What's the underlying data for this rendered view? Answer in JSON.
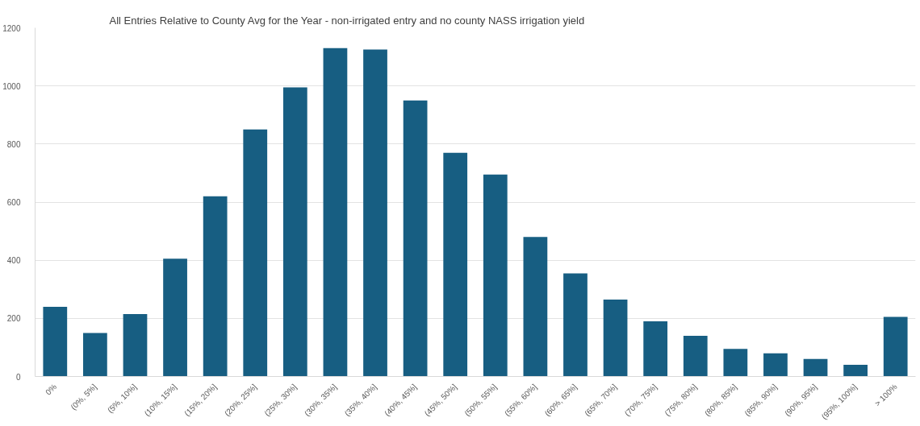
{
  "chart_data": {
    "type": "bar",
    "title": "All Entries Relative to County Avg for the Year - non-irrigated entry and no county NASS irrigation yield",
    "categories": [
      "0%",
      "(0%, 5%]",
      "(5%, 10%]",
      "(10%, 15%]",
      "(15%, 20%]",
      "(20%, 25%]",
      "(25%, 30%]",
      "(30%, 35%]",
      "(35%, 40%]",
      "(40%, 45%]",
      "(45%, 50%]",
      "(50%, 55%]",
      "(55%, 60%]",
      "(60%, 65%]",
      "(65%, 70%]",
      "(70%, 75%]",
      "(75%, 80%]",
      "(80%, 85%]",
      "(85%, 90%]",
      "(90%, 95%]",
      "(95%, 100%]",
      "> 100%"
    ],
    "values": [
      240,
      150,
      215,
      405,
      620,
      850,
      995,
      1130,
      1125,
      950,
      770,
      695,
      480,
      355,
      265,
      190,
      140,
      95,
      80,
      60,
      40,
      205
    ],
    "color": "#175e82",
    "ylim": [
      0,
      1200
    ],
    "yticks": [
      0,
      200,
      400,
      600,
      800,
      1000,
      1200
    ],
    "grid": "y"
  }
}
